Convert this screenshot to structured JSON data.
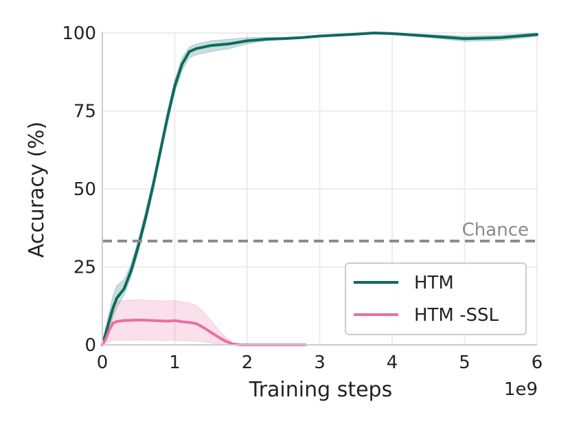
{
  "chart_data": {
    "type": "line",
    "xlabel": "Training steps",
    "ylabel": "Accuracy (%)",
    "x_offset_label": "1e9",
    "xlim": [
      0,
      6
    ],
    "ylim": [
      0,
      100
    ],
    "xticks": [
      0,
      1,
      2,
      3,
      4,
      5,
      6
    ],
    "yticks": [
      0,
      25,
      50,
      75,
      100
    ],
    "grid": true,
    "legend_position": "lower-right",
    "reference_line": {
      "label": "Chance",
      "y": 33.3,
      "color": "#8a8a8a",
      "style": "dashed"
    },
    "series": [
      {
        "name": "HTM",
        "color": "#0b6b5e",
        "x": [
          0,
          0.05,
          0.1,
          0.15,
          0.2,
          0.3,
          0.4,
          0.5,
          0.6,
          0.7,
          0.8,
          0.9,
          1.0,
          1.1,
          1.2,
          1.3,
          1.5,
          1.75,
          2.0,
          2.25,
          2.5,
          2.75,
          3.0,
          3.5,
          3.75,
          4.0,
          4.5,
          5.0,
          5.5,
          6.0
        ],
        "y": [
          0,
          4,
          8,
          12,
          15,
          18,
          24,
          32,
          41,
          51,
          62,
          73,
          83,
          90,
          94,
          95,
          96,
          96.5,
          97.5,
          98,
          98.2,
          98.5,
          99,
          99.6,
          100,
          99.8,
          99,
          98.2,
          98.5,
          99.5
        ],
        "band_lower": [
          0,
          2,
          5,
          9,
          12,
          16,
          22,
          30,
          39,
          49,
          60,
          71,
          81,
          88,
          92,
          93,
          94,
          95,
          96.5,
          97.5,
          98,
          98.2,
          98.7,
          99.4,
          99.8,
          99.5,
          98.6,
          97.3,
          97.6,
          98.9
        ],
        "band_upper": [
          0,
          6,
          11,
          16,
          19,
          21,
          26,
          34,
          43,
          53,
          64,
          75,
          85,
          92,
          95.5,
          96.5,
          97.5,
          98,
          98.5,
          98.6,
          98.6,
          98.8,
          99.3,
          99.8,
          100,
          100,
          99.5,
          99,
          99.3,
          100
        ]
      },
      {
        "name": "HTM -SSL",
        "color": "#e8709f",
        "x": [
          0,
          0.05,
          0.1,
          0.15,
          0.2,
          0.3,
          0.5,
          0.7,
          0.9,
          1.0,
          1.1,
          1.2,
          1.3,
          1.4,
          1.5,
          1.6,
          1.7,
          1.8,
          1.9,
          2.0,
          2.3,
          2.6,
          2.8
        ],
        "y": [
          0,
          2,
          5,
          7,
          7.5,
          7.8,
          8,
          7.8,
          7.6,
          7.8,
          7.4,
          7.2,
          6.8,
          5.5,
          4,
          2.5,
          1.2,
          0.3,
          0,
          0,
          0,
          0,
          0
        ],
        "band_lower": [
          0,
          0.5,
          1,
          1.5,
          1.5,
          1.5,
          1.6,
          1.5,
          1.4,
          1.5,
          1.4,
          1.3,
          1.2,
          1,
          0.6,
          0.3,
          0.1,
          0,
          0,
          0,
          0,
          0,
          0
        ],
        "band_upper": [
          0,
          5,
          10,
          13,
          13.8,
          14.2,
          14.5,
          14.2,
          14,
          14.2,
          13.8,
          13.4,
          12.6,
          10.5,
          7.8,
          5,
          2.5,
          0.7,
          0,
          0,
          0,
          0,
          0
        ]
      }
    ]
  }
}
